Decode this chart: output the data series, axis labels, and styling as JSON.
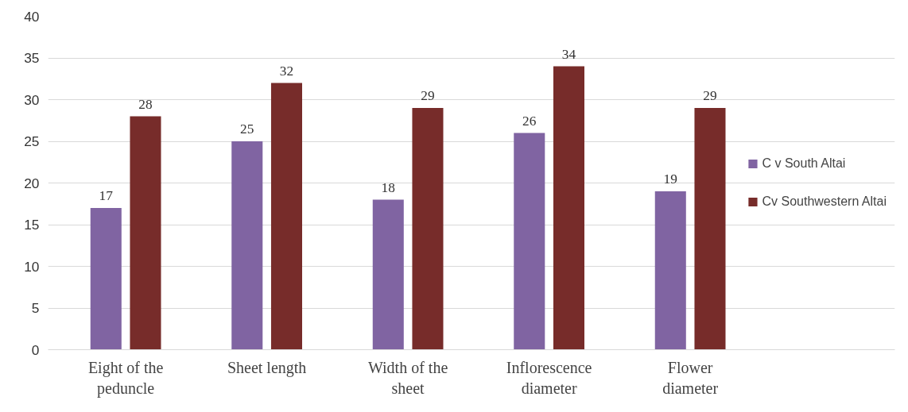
{
  "chart_data": {
    "type": "bar",
    "categories": [
      "Eight of the peduncle",
      "Sheet length",
      "Width of the sheet",
      "Inflorescence diameter",
      "Flower diameter"
    ],
    "series": [
      {
        "name": "C v South Altai",
        "color": "#8064a2",
        "values": [
          17,
          25,
          18,
          26,
          19
        ]
      },
      {
        "name": "Cv Southwestern Altai",
        "color": "#772c2a",
        "values": [
          28,
          32,
          29,
          34,
          29
        ]
      }
    ],
    "ylim": [
      0,
      40
    ],
    "yticks": [
      0,
      5,
      10,
      15,
      20,
      25,
      30,
      35,
      40
    ],
    "grid": "y",
    "legend": "right",
    "data_labels": true
  }
}
